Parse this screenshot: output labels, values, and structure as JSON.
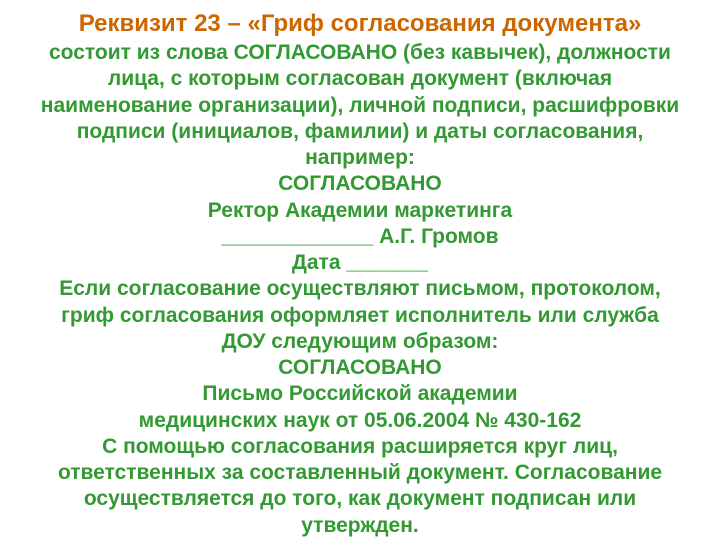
{
  "title_text": "Реквизит 23 – «Гриф согласования документа»",
  "title_color": "#cc6600",
  "title_fontsize": 24,
  "body_color": "#339933",
  "body_fontsize": 21,
  "lines": [
    "состоит из слова СОГЛАСОВАНО (без кавычек), должности",
    "лица, с которым согласован документ (включая",
    "наименование организации), личной подписи, расшифровки",
    "подписи (инициалов, фамилии) и даты согласования,",
    "например:",
    "СОГЛАСОВАНО",
    "Ректор Академии маркетинга",
    "_____________ А.Г. Громов",
    "Дата _______",
    "Если согласование осуществляют письмом, протоколом,",
    "гриф согласования оформляет исполнитель или служба",
    "ДОУ следующим образом:",
    "СОГЛАСОВАНО",
    "Письмо Российской академии",
    "медицинских наук от 05.06.2004 № 430-162",
    "С помощью согласования расширяется круг лиц,",
    "ответственных за составленный документ. Согласование",
    "осуществляется до того, как документ подписан или",
    "утвержден."
  ]
}
